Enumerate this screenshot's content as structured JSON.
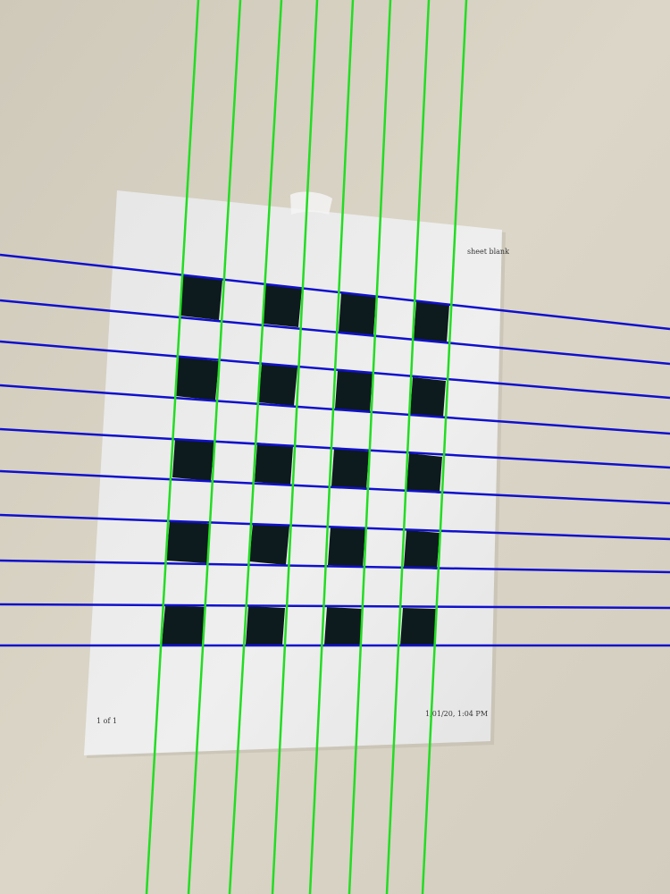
{
  "sheet": {
    "header_text": "sheet blank",
    "footer_left": "1 of 1",
    "footer_right": "1/01/20, 1:04 PM"
  },
  "colors": {
    "wall": "#d8d2c4",
    "paper": "#ebebeb",
    "square": "#0d1a1e",
    "vertical_lines": "#22dd22",
    "horizontal_lines": "#1010cc"
  },
  "checkerboard": {
    "rows": 5,
    "columns": 4
  },
  "overlay": {
    "vertical_line_count": 8,
    "horizontal_line_count": 10
  }
}
